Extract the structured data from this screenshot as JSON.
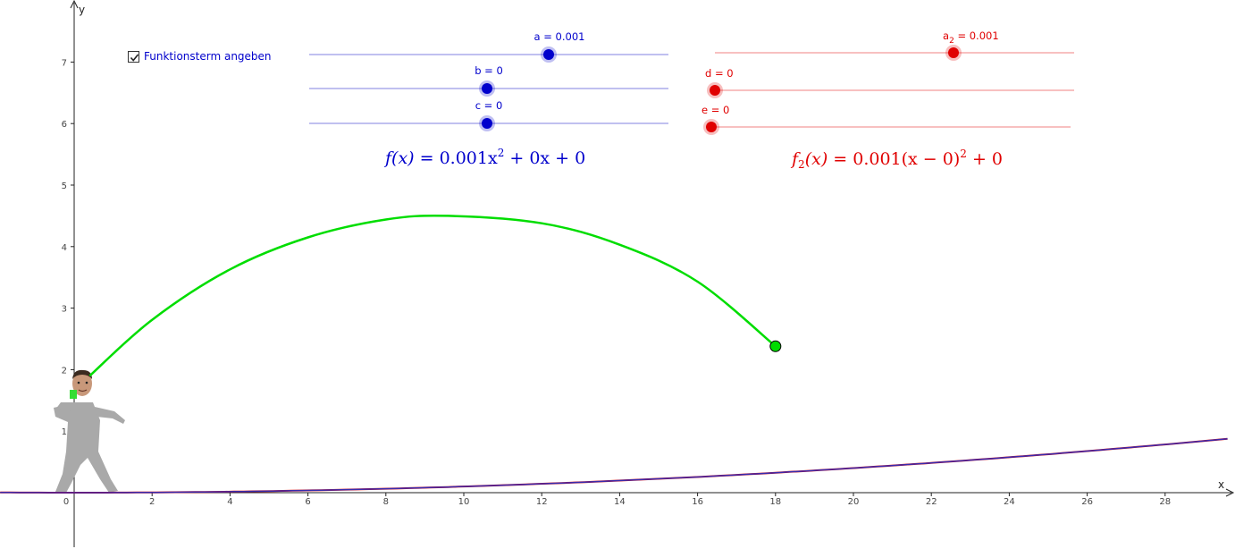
{
  "axes": {
    "x_label": "x",
    "y_label": "y",
    "x_ticks": [
      "0",
      "2",
      "4",
      "6",
      "8",
      "10",
      "12",
      "14",
      "16",
      "18",
      "20",
      "22",
      "24",
      "26",
      "28"
    ],
    "y_ticks": [
      "1",
      "2",
      "3",
      "4",
      "5",
      "6",
      "7"
    ],
    "x_range": [
      -1.9,
      29.8
    ],
    "y_range": [
      -0.9,
      8.0
    ]
  },
  "checkbox": {
    "label": "Funktionsterm angeben",
    "checked": true
  },
  "sliders_blue": [
    {
      "label": "a = 0.001",
      "value": 0.001
    },
    {
      "label": "b = 0",
      "value": 0
    },
    {
      "label": "c = 0",
      "value": 0
    }
  ],
  "sliders_red": [
    {
      "label_main": "a",
      "label_sub": "2",
      "label_rest": " = 0.001",
      "value": 0.001
    },
    {
      "label": "d = 0",
      "value": 0
    },
    {
      "label": "e = 0",
      "value": 0
    }
  ],
  "formulas": {
    "f_lhs": "f(x) = ",
    "f_rhs_a": "0.001x",
    "f_rhs_exp": "2",
    "f_rhs_b": " + 0x + 0",
    "f2_name": "f",
    "f2_sub": "2",
    "f2_lhs": "(x) = ",
    "f2_rhs_a": "0.001(x − 0)",
    "f2_rhs_exp": "2",
    "f2_rhs_b": " + 0"
  },
  "colors": {
    "blue": "#0000cc",
    "red": "#e00000",
    "green": "#00dd00",
    "purple": "#8b1a6b",
    "slider_line_blue": "#8080e0",
    "slider_line_red": "#f08080"
  },
  "chart_data": {
    "type": "line",
    "series": [
      {
        "name": "f",
        "function": "0.001x^2 + 0x + 0",
        "x_from": -1.9,
        "x_to": 29.8
      },
      {
        "name": "f_2",
        "function": "0.001(x - 0)^2 + 0",
        "x_from": -1.9,
        "x_to": 29.8
      },
      {
        "x": [
          0.4,
          2,
          4,
          6,
          8,
          9.6,
          12,
          14,
          16,
          18
        ],
        "y": [
          1.9,
          2.81,
          3.63,
          4.15,
          4.44,
          4.5,
          4.38,
          4.03,
          3.43,
          2.38
        ]
      }
    ],
    "end_point": {
      "x": 18,
      "y": 2.38
    },
    "grid": false
  },
  "figure": {
    "name": "thrower-figure-icon"
  }
}
